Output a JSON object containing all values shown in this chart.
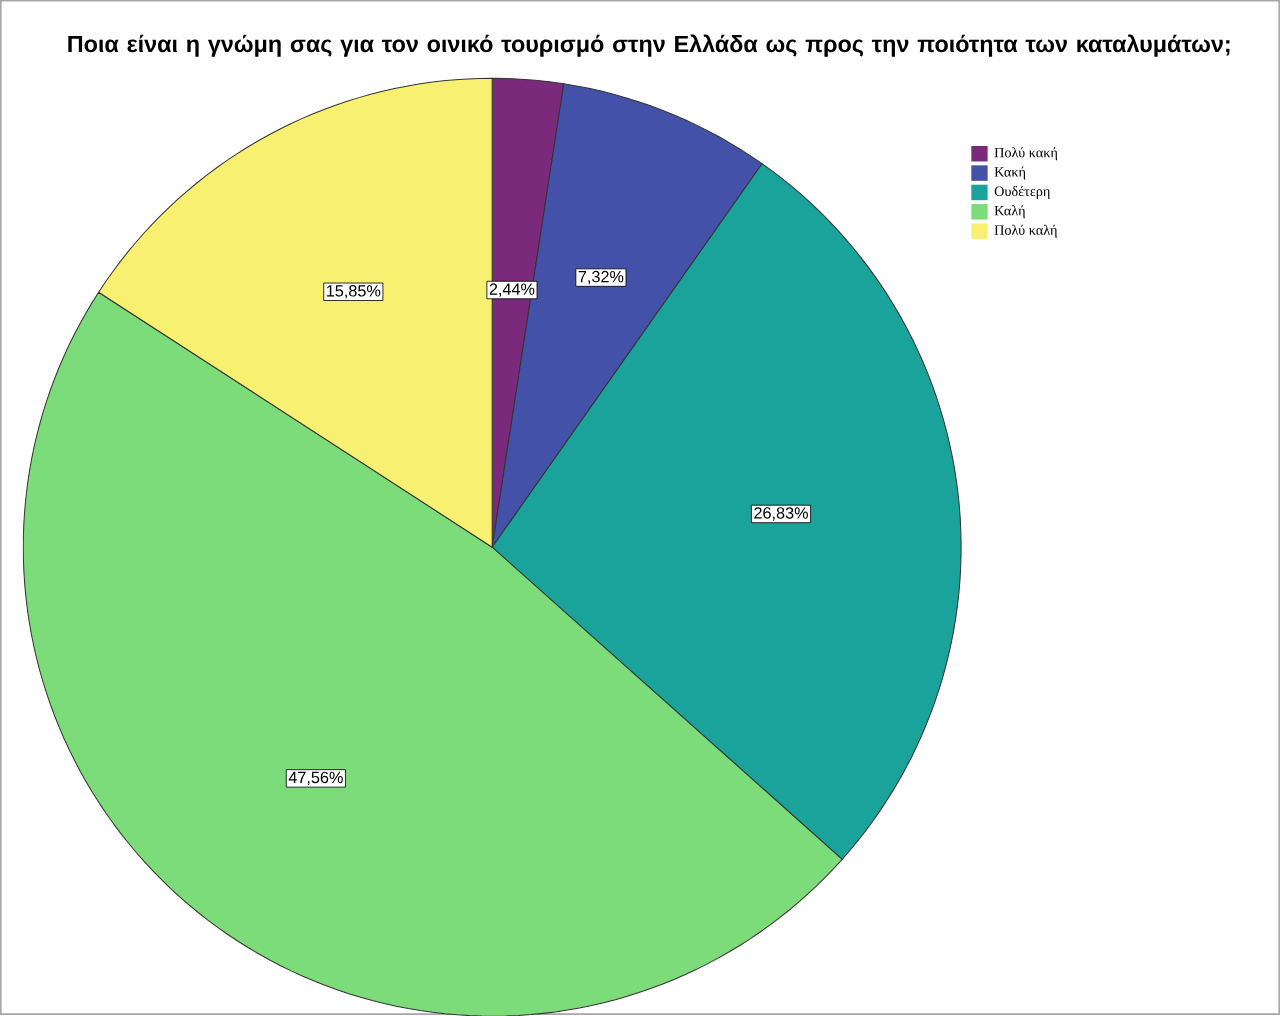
{
  "chart_data": {
    "type": "pie",
    "title": "Ποια είναι η γνώμη σας για τον οινικό τουρισμό στην Ελλάδα ως προς την ποιότητα των καταλυμάτων;",
    "categories": [
      "Πολύ κακή",
      "Κακή",
      "Ουδέτερη",
      "Καλή",
      "Πολύ καλή"
    ],
    "values": [
      2.44,
      7.32,
      26.83,
      47.56,
      15.85
    ],
    "value_labels": [
      "2,44%",
      "7,32%",
      "26,83%",
      "47,56%",
      "15,85%"
    ],
    "colors": [
      "#7b2a7b",
      "#4352a8",
      "#1aa39a",
      "#7ddc7a",
      "#f8f070"
    ],
    "legend": "top right"
  }
}
